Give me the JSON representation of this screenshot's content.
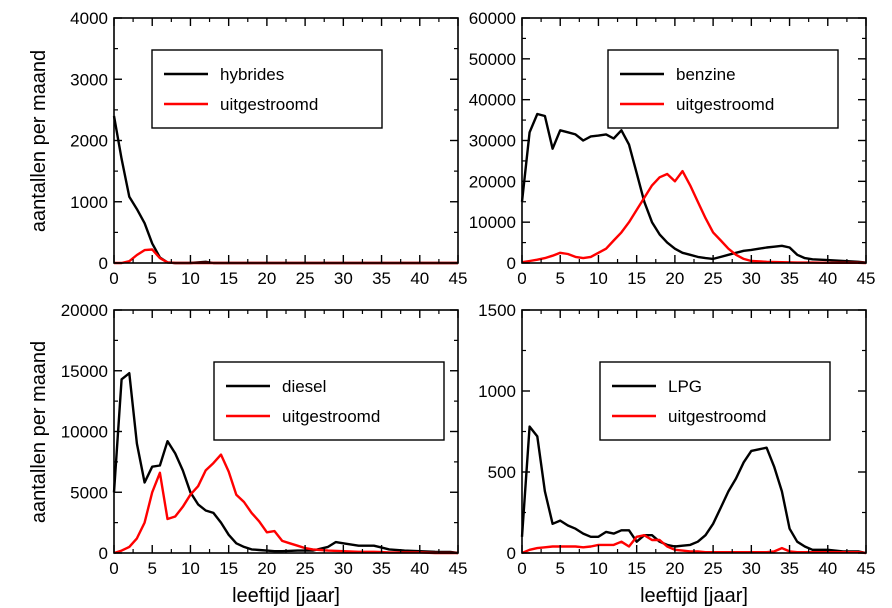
{
  "figure": {
    "ylabel": "aantallen per maand",
    "xlabel": "leeftijd [jaar]"
  },
  "chart_data": [
    {
      "type": "line",
      "panel": "top-left",
      "xlim": [
        0,
        45
      ],
      "ylim": [
        0,
        4000
      ],
      "xticks": [
        0,
        5,
        10,
        15,
        20,
        25,
        30,
        35,
        40,
        45
      ],
      "yticks": [
        0,
        1000,
        2000,
        3000,
        4000
      ],
      "ylabel": "aantallen per maand",
      "xlabel": "",
      "legend_position": "top-center",
      "series": [
        {
          "name": "hybrides",
          "color": "#000000",
          "x": [
            0,
            1,
            2,
            3,
            4,
            5,
            6,
            7,
            8,
            10,
            12,
            13,
            15,
            20,
            25,
            30,
            35,
            40,
            45
          ],
          "y": [
            2400,
            1700,
            1080,
            880,
            650,
            320,
            90,
            10,
            0,
            0,
            20,
            0,
            0,
            0,
            0,
            0,
            0,
            0,
            0
          ]
        },
        {
          "name": "uitgestroomd",
          "color": "#ff0000",
          "x": [
            0,
            1,
            2,
            3,
            4,
            5,
            6,
            7,
            8,
            10,
            15,
            20,
            25,
            30,
            35,
            40,
            45
          ],
          "y": [
            0,
            0,
            30,
            130,
            210,
            220,
            80,
            10,
            0,
            0,
            0,
            0,
            0,
            0,
            0,
            0,
            0
          ]
        }
      ]
    },
    {
      "type": "line",
      "panel": "top-right",
      "xlim": [
        0,
        45
      ],
      "ylim": [
        0,
        60000
      ],
      "xticks": [
        0,
        5,
        10,
        15,
        20,
        25,
        30,
        35,
        40,
        45
      ],
      "yticks": [
        0,
        10000,
        20000,
        30000,
        40000,
        50000,
        60000
      ],
      "ylabel": "",
      "xlabel": "",
      "legend_position": "top-right",
      "series": [
        {
          "name": "benzine",
          "color": "#000000",
          "x": [
            0,
            1,
            2,
            3,
            4,
            5,
            6,
            7,
            8,
            9,
            10,
            11,
            12,
            13,
            14,
            15,
            16,
            17,
            18,
            19,
            20,
            21,
            22,
            23,
            24,
            25,
            26,
            27,
            28,
            29,
            30,
            31,
            32,
            33,
            34,
            35,
            36,
            37,
            38,
            40,
            42,
            44,
            45
          ],
          "y": [
            15000,
            32000,
            36500,
            36000,
            28000,
            32500,
            32000,
            31500,
            30000,
            31000,
            31200,
            31500,
            30500,
            32500,
            29000,
            22000,
            15000,
            10000,
            7000,
            5000,
            3500,
            2500,
            2000,
            1500,
            1200,
            1000,
            1500,
            2000,
            2500,
            3000,
            3200,
            3500,
            3800,
            4000,
            4200,
            3800,
            2000,
            1200,
            900,
            700,
            500,
            300,
            100
          ]
        },
        {
          "name": "uitgestroomd",
          "color": "#ff0000",
          "x": [
            0,
            1,
            2,
            3,
            4,
            5,
            6,
            7,
            8,
            9,
            10,
            11,
            12,
            13,
            14,
            15,
            16,
            17,
            18,
            19,
            20,
            21,
            22,
            23,
            24,
            25,
            26,
            27,
            28,
            29,
            30,
            32,
            34,
            36,
            38,
            40,
            42,
            44,
            45
          ],
          "y": [
            200,
            500,
            800,
            1200,
            1800,
            2500,
            2200,
            1500,
            1200,
            1500,
            2500,
            3500,
            5500,
            7500,
            10000,
            13000,
            16000,
            19000,
            21000,
            21800,
            20000,
            22500,
            19000,
            15000,
            11000,
            7500,
            5500,
            3500,
            2000,
            1000,
            500,
            300,
            200,
            100,
            100,
            50,
            50,
            50,
            0
          ]
        }
      ]
    },
    {
      "type": "line",
      "panel": "bottom-left",
      "xlim": [
        0,
        45
      ],
      "ylim": [
        0,
        20000
      ],
      "xticks": [
        0,
        5,
        10,
        15,
        20,
        25,
        30,
        35,
        40,
        45
      ],
      "yticks": [
        0,
        5000,
        10000,
        15000,
        20000
      ],
      "ylabel": "aantallen per maand",
      "xlabel": "leeftijd [jaar]",
      "legend_position": "top-right",
      "series": [
        {
          "name": "diesel",
          "color": "#000000",
          "x": [
            0,
            1,
            2,
            3,
            4,
            5,
            6,
            7,
            8,
            9,
            10,
            11,
            12,
            13,
            14,
            15,
            16,
            17,
            18,
            19,
            20,
            21,
            22,
            24,
            26,
            28,
            29,
            30,
            32,
            34,
            36,
            38,
            40,
            42,
            44,
            45
          ],
          "y": [
            5000,
            14300,
            14800,
            9000,
            5800,
            7100,
            7200,
            9200,
            8200,
            6800,
            5000,
            4000,
            3500,
            3300,
            2500,
            1500,
            800,
            500,
            300,
            250,
            200,
            150,
            150,
            200,
            200,
            500,
            900,
            800,
            600,
            600,
            300,
            200,
            150,
            100,
            80,
            0
          ]
        },
        {
          "name": "uitgestroomd",
          "color": "#ff0000",
          "x": [
            0,
            1,
            2,
            3,
            4,
            5,
            6,
            7,
            8,
            9,
            10,
            11,
            12,
            13,
            14,
            15,
            16,
            17,
            18,
            19,
            20,
            21,
            22,
            23,
            24,
            25,
            26,
            27,
            28,
            30,
            32,
            34,
            36,
            38,
            40,
            42,
            44,
            45
          ],
          "y": [
            0,
            200,
            500,
            1200,
            2500,
            5000,
            6600,
            2800,
            3000,
            3800,
            4800,
            5500,
            6800,
            7400,
            8100,
            6700,
            4800,
            4200,
            3300,
            2600,
            1700,
            1800,
            1000,
            800,
            600,
            400,
            300,
            250,
            200,
            150,
            100,
            100,
            50,
            50,
            50,
            0,
            0,
            0
          ]
        }
      ]
    },
    {
      "type": "line",
      "panel": "bottom-right",
      "xlim": [
        0,
        45
      ],
      "ylim": [
        0,
        1500
      ],
      "xticks": [
        0,
        5,
        10,
        15,
        20,
        25,
        30,
        35,
        40,
        45
      ],
      "yticks": [
        0,
        500,
        1000,
        1500
      ],
      "ylabel": "",
      "xlabel": "leeftijd [jaar]",
      "legend_position": "top-right",
      "series": [
        {
          "name": "LPG",
          "color": "#000000",
          "x": [
            0,
            1,
            2,
            3,
            4,
            5,
            6,
            7,
            8,
            9,
            10,
            11,
            12,
            13,
            14,
            15,
            16,
            17,
            18,
            19,
            20,
            21,
            22,
            23,
            24,
            25,
            26,
            27,
            28,
            29,
            30,
            31,
            32,
            33,
            34,
            35,
            36,
            37,
            38,
            40,
            42,
            44,
            45
          ],
          "y": [
            100,
            780,
            720,
            380,
            180,
            200,
            170,
            150,
            120,
            100,
            100,
            130,
            120,
            140,
            140,
            70,
            110,
            110,
            70,
            50,
            40,
            45,
            50,
            70,
            110,
            180,
            280,
            380,
            460,
            560,
            630,
            640,
            650,
            530,
            380,
            150,
            70,
            40,
            20,
            20,
            10,
            10,
            0
          ]
        },
        {
          "name": "uitgestroomd",
          "color": "#ff0000",
          "x": [
            0,
            1,
            2,
            3,
            4,
            5,
            6,
            7,
            8,
            9,
            10,
            11,
            12,
            13,
            14,
            15,
            16,
            17,
            18,
            19,
            20,
            21,
            22,
            23,
            24,
            25,
            26,
            28,
            30,
            32,
            33,
            34,
            35,
            36,
            38,
            40,
            42,
            44,
            45
          ],
          "y": [
            0,
            20,
            30,
            35,
            40,
            40,
            40,
            40,
            35,
            40,
            50,
            50,
            50,
            70,
            40,
            100,
            110,
            80,
            80,
            40,
            20,
            15,
            10,
            10,
            5,
            5,
            5,
            5,
            5,
            5,
            10,
            30,
            10,
            5,
            5,
            5,
            5,
            5,
            0
          ]
        }
      ]
    }
  ]
}
